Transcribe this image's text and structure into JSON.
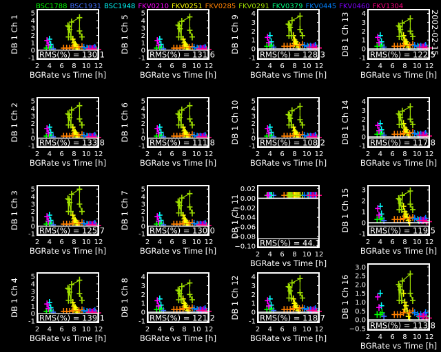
{
  "date": "2002-02-15",
  "chart_data": {
    "type": "scatter",
    "xlabel": "BGRate  vs Time [h]",
    "xlim": [
      2,
      12
    ],
    "xticks": [
      "2",
      "4",
      "6",
      "8",
      "10",
      "12"
    ],
    "xtick_values": [
      2,
      4,
      6,
      8,
      10,
      12
    ],
    "legend_placement": "top",
    "series": [
      {
        "name": "BSC1788",
        "color": "#00ff00",
        "x": [
          3.5,
          4.0,
          4.3
        ],
        "y": [
          0.3,
          0.3,
          0.4
        ]
      },
      {
        "name": "BSC1931",
        "color": "#4070ff",
        "x": [
          4.6
        ],
        "y": [
          0.2
        ]
      },
      {
        "name": "BSC1948",
        "color": "#00ffff",
        "x": [
          4.0,
          4.2
        ],
        "y": [
          1.5,
          0.8
        ]
      },
      {
        "name": "FKV0210",
        "color": "#ff00ff",
        "x": [
          3.6,
          3.8
        ],
        "y": [
          1.3,
          0.7
        ]
      },
      {
        "name": "FKV0251",
        "color": "#ffff00",
        "x": [
          7.8,
          8.0,
          8.2,
          8.0,
          8.4,
          8.6,
          8.8
        ],
        "y": [
          1.5,
          1.0,
          0.8,
          0.6,
          0.5,
          0.2,
          0.0
        ]
      },
      {
        "name": "FKV0285",
        "color": "#ff8000",
        "x": [
          6.3,
          6.8,
          7.3,
          7.8,
          8.8,
          9.3
        ],
        "y": [
          0.3,
          0.3,
          0.3,
          0.4,
          0.4,
          0.5
        ]
      },
      {
        "name": "FKV0291",
        "color": "#a0e000",
        "x": [
          7.0,
          7.1,
          7.2,
          7.3,
          7.5,
          7.6,
          8.9,
          8.9,
          9.3
        ],
        "y": [
          3.3,
          1.8,
          3.2,
          2.8,
          1.8,
          3.8,
          4.4,
          2.6,
          1.8
        ],
        "connected": true
      },
      {
        "name": "FKV0379",
        "color": "#00ff80",
        "x": [
          10.3,
          11.5
        ],
        "y": [
          0.2,
          0.2
        ]
      },
      {
        "name": "FKV0445",
        "color": "#0080ff",
        "x": [
          9.6,
          10.1,
          10.6,
          11.4
        ],
        "y": [
          0.4,
          0.3,
          0.3,
          0.4
        ]
      },
      {
        "name": "FKV0460",
        "color": "#8000ff",
        "x": [
          10.8,
          11.2
        ],
        "y": [
          0.2,
          0.3
        ]
      },
      {
        "name": "FKV1304",
        "color": "#ff0080",
        "x": [
          10.4,
          11.0,
          11.6,
          12.0
        ],
        "y": [
          0.2,
          0.2,
          0.1,
          0.1
        ]
      }
    ],
    "panels": [
      {
        "ylabel": "DB 1 Ch 1",
        "ylim": [
          -1,
          5.2
        ],
        "yticks": [
          "-1",
          "0",
          "1",
          "2",
          "3",
          "4",
          "5"
        ],
        "ytick_values": [
          -1,
          0,
          1,
          2,
          3,
          4,
          5
        ],
        "rms_label": "RMS(%) = 130.1",
        "y": {}
      },
      {
        "ylabel": "DB 1 Ch 5",
        "ylim": [
          -1,
          5.2
        ],
        "yticks": [
          "-1",
          "0",
          "1",
          "2",
          "3",
          "4",
          "5"
        ],
        "ytick_values": [
          -1,
          0,
          1,
          2,
          3,
          4,
          5
        ],
        "rms_label": "RMS(%) = 131.6",
        "y": {
          "FKV0291": [
            3.4,
            1.8,
            3.3,
            2.9,
            1.8,
            3.9,
            4.5,
            2.7,
            1.8
          ]
        }
      },
      {
        "ylabel": "DB 1 Ch 9",
        "ylim": [
          -1,
          4.2
        ],
        "yticks": [
          "-1",
          "0",
          "1",
          "2",
          "3",
          "4"
        ],
        "ytick_values": [
          -1,
          0,
          1,
          2,
          3,
          4
        ],
        "rms_label": "RMS(%) = 128.3",
        "y": {
          "FKV0291": [
            2.8,
            1.5,
            2.7,
            2.4,
            1.5,
            3.2,
            3.7,
            2.2,
            1.5
          ]
        }
      },
      {
        "ylabel": "DB 1 Ch 13",
        "ylim": [
          -1,
          4.2
        ],
        "yticks": [
          "-1",
          "0",
          "1",
          "2",
          "3",
          "4"
        ],
        "ytick_values": [
          -1,
          0,
          1,
          2,
          3,
          4
        ],
        "rms_label": "RMS(%) = 122.5",
        "y": {
          "FKV0291": [
            2.6,
            1.4,
            2.5,
            2.2,
            1.4,
            2.9,
            3.4,
            2.0,
            1.4
          ]
        }
      },
      {
        "ylabel": "DB 1 Ch 2",
        "ylim": [
          -1,
          5.2
        ],
        "yticks": [
          "-1",
          "0",
          "1",
          "2",
          "3",
          "4",
          "5"
        ],
        "ytick_values": [
          -1,
          0,
          1,
          2,
          3,
          4,
          5
        ],
        "rms_label": "RMS(%) = 133.8",
        "y": {}
      },
      {
        "ylabel": "DB 1 Ch 6",
        "ylim": [
          -1,
          5.2
        ],
        "yticks": [
          "-1",
          "0",
          "1",
          "2",
          "3",
          "4",
          "5"
        ],
        "ytick_values": [
          -1,
          0,
          1,
          2,
          3,
          4,
          5
        ],
        "rms_label": "RMS(%) = 111.8",
        "y": {}
      },
      {
        "ylabel": "DB 1 Ch 10",
        "ylim": [
          -1,
          5.2
        ],
        "yticks": [
          "-1",
          "0",
          "1",
          "2",
          "3",
          "4",
          "5"
        ],
        "ytick_values": [
          -1,
          0,
          1,
          2,
          3,
          4,
          5
        ],
        "rms_label": "RMS(%) = 108.2",
        "y": {
          "FKV0291": [
            3.2,
            1.8,
            3.1,
            2.7,
            1.8,
            3.7,
            4.3,
            2.5,
            1.8
          ]
        }
      },
      {
        "ylabel": "DB 1 Ch 14",
        "ylim": [
          -1,
          4.2
        ],
        "yticks": [
          "-1",
          "0",
          "1",
          "2",
          "3",
          "4"
        ],
        "ytick_values": [
          -1,
          0,
          1,
          2,
          3,
          4
        ],
        "rms_label": "RMS(%) = 117.8",
        "y": {
          "FKV0291": [
            2.6,
            1.4,
            2.5,
            2.2,
            1.4,
            2.9,
            3.4,
            2.0,
            1.4
          ]
        }
      },
      {
        "ylabel": "DB 1 Ch 3",
        "ylim": [
          -1,
          5.2
        ],
        "yticks": [
          "-1",
          "0",
          "1",
          "2",
          "3",
          "4",
          "5"
        ],
        "ytick_values": [
          -1,
          0,
          1,
          2,
          3,
          4,
          5
        ],
        "rms_label": "RMS(%) = 125.7",
        "y": {
          "FKV0291": [
            3.7,
            2.0,
            3.6,
            3.2,
            2.0,
            4.3,
            5.0,
            3.0,
            2.0
          ]
        }
      },
      {
        "ylabel": "DB 1 Ch 7",
        "ylim": [
          -1,
          5.2
        ],
        "yticks": [
          "-1",
          "0",
          "1",
          "2",
          "3",
          "4",
          "5"
        ],
        "ytick_values": [
          -1,
          0,
          1,
          2,
          3,
          4,
          5
        ],
        "rms_label": "RMS(%) = 130.0",
        "y": {}
      },
      {
        "ylabel": "DB 1 Ch 11",
        "ylim": [
          -0.1,
          0.022
        ],
        "yticks": [
          "−0.10",
          "−0.08",
          "−0.06",
          "−0.04",
          "−0.02",
          "0.00",
          "0.02"
        ],
        "ytick_values": [
          -0.1,
          -0.08,
          -0.06,
          -0.04,
          -0.02,
          0,
          0.02
        ],
        "rms_label": "RMS(%) =  44.1",
        "y": {
          "all": 0.006
        }
      },
      {
        "ylabel": "DB 1 Ch 15",
        "ylim": [
          -1,
          3.2
        ],
        "yticks": [
          "-1",
          "0",
          "1",
          "2",
          "3"
        ],
        "ytick_values": [
          -1,
          0,
          1,
          2,
          3
        ],
        "rms_label": "RMS(%) = 119.5",
        "y": {
          "FKV0291": [
            2.2,
            1.2,
            2.1,
            1.8,
            1.2,
            2.5,
            2.9,
            1.7,
            1.2
          ]
        }
      },
      {
        "ylabel": "DB 1 Ch 4",
        "ylim": [
          -1,
          5.2
        ],
        "yticks": [
          "-1",
          "0",
          "1",
          "2",
          "3",
          "4",
          "5"
        ],
        "ytick_values": [
          -1,
          0,
          1,
          2,
          3,
          4,
          5
        ],
        "rms_label": "RMS(%) = 139.1",
        "y": {
          "FKV0291": [
            3.4,
            1.8,
            3.3,
            2.9,
            1.8,
            3.9,
            4.5,
            2.7,
            1.8
          ]
        }
      },
      {
        "ylabel": "DB 1 Ch 8",
        "ylim": [
          -1,
          4.2
        ],
        "yticks": [
          "-1",
          "0",
          "1",
          "2",
          "3",
          "4"
        ],
        "ytick_values": [
          -1,
          0,
          1,
          2,
          3,
          4
        ],
        "rms_label": "RMS(%) = 121.2",
        "y": {
          "FKV0291": [
            2.5,
            1.4,
            2.4,
            2.1,
            1.4,
            2.9,
            3.3,
            2.0,
            1.4
          ]
        }
      },
      {
        "ylabel": "DB 1 Ch 12",
        "ylim": [
          -1,
          4.2
        ],
        "yticks": [
          "-1",
          "0",
          "1",
          "2",
          "3",
          "4"
        ],
        "ytick_values": [
          -1,
          0,
          1,
          2,
          3,
          4
        ],
        "rms_label": "RMS(%) = 118.7",
        "y": {
          "FKV0291": [
            2.9,
            1.6,
            2.8,
            2.4,
            1.6,
            3.3,
            3.8,
            2.2,
            1.6
          ]
        }
      },
      {
        "ylabel": "DB 1 Ch 16",
        "ylim": [
          -0.5,
          3.05
        ],
        "yticks": [
          "−0.5",
          "0.0",
          "0.5",
          "1.0",
          "1.5",
          "2.0",
          "2.5",
          "3.0"
        ],
        "ytick_values": [
          -0.5,
          0,
          0.5,
          1,
          1.5,
          2,
          2.5,
          3
        ],
        "rms_label": "RMS(%) = 113.8",
        "y": {
          "FKV0291": [
            2.0,
            1.1,
            1.9,
            1.7,
            1.1,
            2.2,
            2.6,
            1.5,
            1.1
          ]
        }
      }
    ]
  }
}
